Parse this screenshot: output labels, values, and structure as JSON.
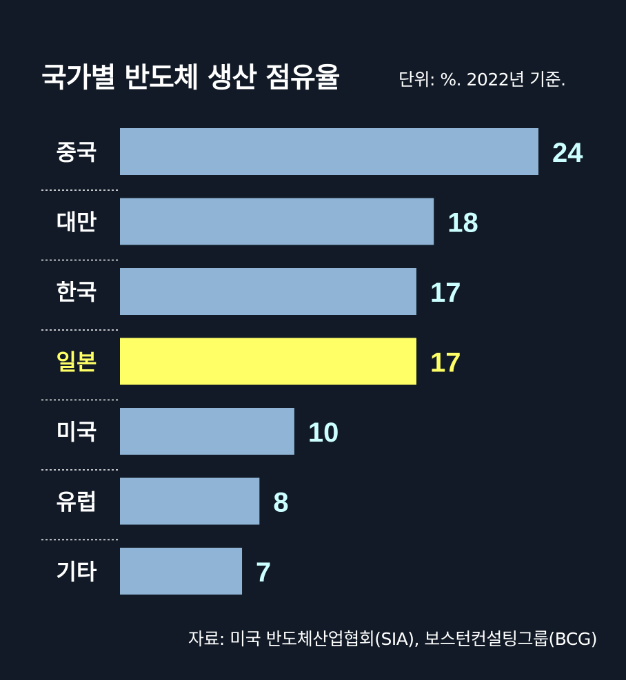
{
  "chart_data": {
    "type": "bar",
    "orientation": "horizontal",
    "title": "국가별 반도체 생산 점유율",
    "unit_note": "단위: %. 2022년 기준.",
    "source": "자료: 미국 반도체산업협회(SIA), 보스턴컨설팅그룹(BCG)",
    "categories": [
      "중국",
      "대만",
      "한국",
      "일본",
      "미국",
      "유럽",
      "기타"
    ],
    "values": [
      24,
      18,
      17,
      17,
      10,
      8,
      7
    ],
    "highlight_category": "일본",
    "xlim": [
      0,
      24
    ],
    "grid": false,
    "legend": "none"
  },
  "colors": {
    "background": "#111a26",
    "bar": "#8fb4d6",
    "bar_highlight": "#ffff66",
    "value_label": "#ccffff",
    "value_label_highlight": "#ffff66",
    "category_label": "#ffffff",
    "category_label_highlight": "#ffff66",
    "separator": "#ffffff"
  }
}
